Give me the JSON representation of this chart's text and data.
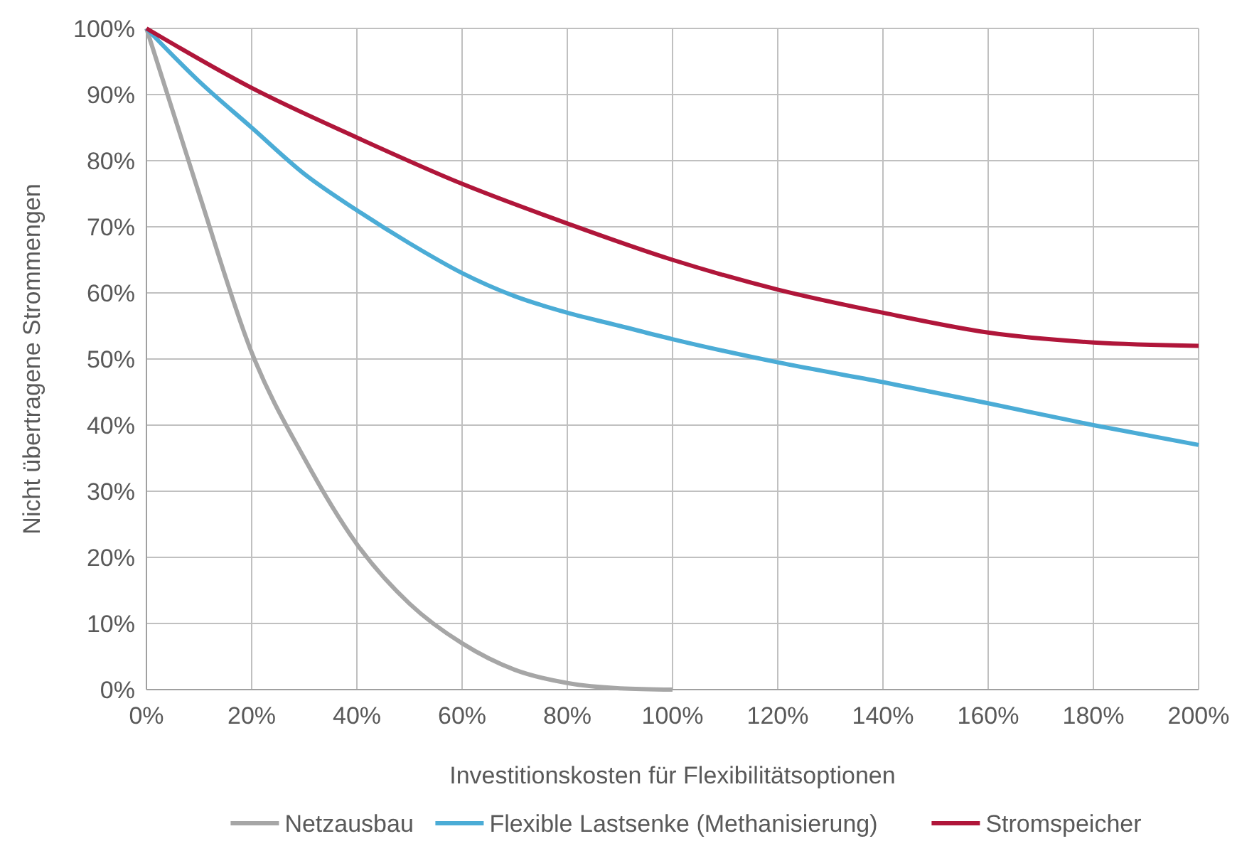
{
  "chart_data": {
    "type": "line",
    "xlabel": "Investitionskosten für Flexibilitätsoptionen",
    "ylabel": "Nicht übertragene Strommengen",
    "x": [
      0,
      10,
      20,
      30,
      40,
      50,
      60,
      70,
      80,
      90,
      100,
      120,
      140,
      160,
      180,
      200
    ],
    "series": [
      {
        "name": "Netzausbau",
        "color": "#a6a6a6",
        "x": [
          0,
          10,
          20,
          30,
          40,
          50,
          60,
          70,
          80,
          90,
          100
        ],
        "values": [
          100,
          75,
          51,
          35,
          22,
          13,
          7,
          3,
          1,
          0.2,
          0
        ]
      },
      {
        "name": "Flexible Lastsenke (Methanisierung)",
        "color": "#4bacd6",
        "values": [
          100,
          92,
          85,
          78,
          72.5,
          67.5,
          63,
          59.5,
          57,
          55,
          53,
          49.5,
          46.5,
          43.3,
          40,
          37
        ]
      },
      {
        "name": "Stromspeicher",
        "color": "#b0163a",
        "x": [
          0,
          20,
          40,
          60,
          80,
          100,
          120,
          140,
          160,
          180,
          200
        ],
        "values": [
          100,
          91,
          83.5,
          76.5,
          70.5,
          65,
          60.5,
          57,
          54,
          52.5,
          52
        ]
      }
    ],
    "xlim": [
      0,
      200
    ],
    "ylim": [
      0,
      100
    ],
    "xticks": [
      {
        "value": 0,
        "label": "0%"
      },
      {
        "value": 20,
        "label": "20%"
      },
      {
        "value": 40,
        "label": "40%"
      },
      {
        "value": 60,
        "label": "60%"
      },
      {
        "value": 80,
        "label": "80%"
      },
      {
        "value": 100,
        "label": "100%"
      },
      {
        "value": 120,
        "label": "120%"
      },
      {
        "value": 140,
        "label": "140%"
      },
      {
        "value": 160,
        "label": "160%"
      },
      {
        "value": 180,
        "label": "180%"
      },
      {
        "value": 200,
        "label": "200%"
      }
    ],
    "yticks": [
      {
        "value": 0,
        "label": "0%"
      },
      {
        "value": 10,
        "label": "10%"
      },
      {
        "value": 20,
        "label": "20%"
      },
      {
        "value": 30,
        "label": "30%"
      },
      {
        "value": 40,
        "label": "40%"
      },
      {
        "value": 50,
        "label": "50%"
      },
      {
        "value": 60,
        "label": "60%"
      },
      {
        "value": 70,
        "label": "70%"
      },
      {
        "value": 80,
        "label": "80%"
      },
      {
        "value": 90,
        "label": "90%"
      },
      {
        "value": 100,
        "label": "100%"
      }
    ],
    "grid": true,
    "legend": "bottom",
    "marker": "none",
    "line_style": "solid"
  }
}
